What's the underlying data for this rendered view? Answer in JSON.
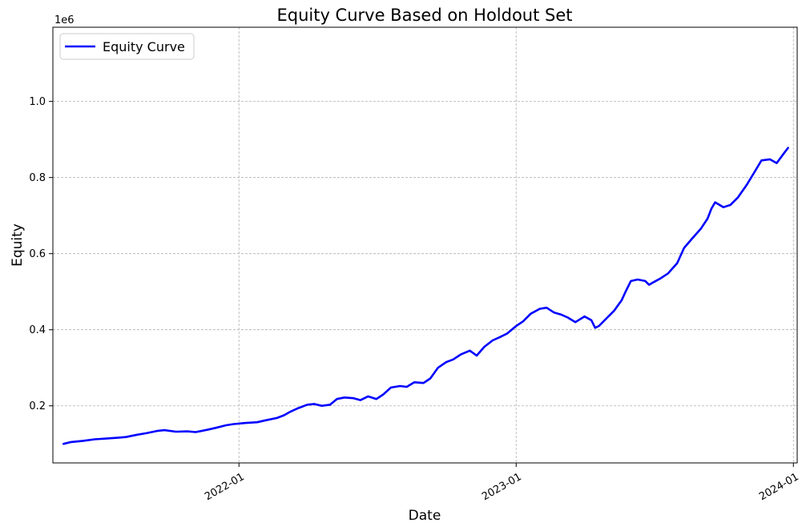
{
  "chart_data": {
    "type": "line",
    "title": "Equity Curve Based on Holdout Set",
    "xlabel": "Date",
    "ylabel": "Equity",
    "y_offset_label": "1e6",
    "xlim": [
      "2021-05-01",
      "2024-01-06"
    ],
    "ylim": [
      50000,
      1195000
    ],
    "x_ticks": [
      {
        "date": "2022-01-01",
        "label": "2022-01"
      },
      {
        "date": "2023-01-01",
        "label": "2023-01"
      },
      {
        "date": "2024-01-01",
        "label": "2024-01"
      }
    ],
    "y_ticks": [
      {
        "value": 200000,
        "label": "0.2"
      },
      {
        "value": 400000,
        "label": "0.4"
      },
      {
        "value": 600000,
        "label": "0.6"
      },
      {
        "value": 800000,
        "label": "0.8"
      },
      {
        "value": 1000000,
        "label": "1.0"
      }
    ],
    "grid": true,
    "legend": {
      "position": "top-left",
      "entries": [
        "Equity Curve"
      ]
    },
    "series": [
      {
        "name": "Equity Curve",
        "color": "#0000ff",
        "points": [
          [
            "2021-05-15",
            100000
          ],
          [
            "2021-05-25",
            105000
          ],
          [
            "2021-06-10",
            108000
          ],
          [
            "2021-06-25",
            112000
          ],
          [
            "2021-07-10",
            114000
          ],
          [
            "2021-07-25",
            116000
          ],
          [
            "2021-08-05",
            118000
          ],
          [
            "2021-08-20",
            124000
          ],
          [
            "2021-09-01",
            128000
          ],
          [
            "2021-09-15",
            134000
          ],
          [
            "2021-09-25",
            136000
          ],
          [
            "2021-10-10",
            132000
          ],
          [
            "2021-10-25",
            133000
          ],
          [
            "2021-11-05",
            131000
          ],
          [
            "2021-11-20",
            137000
          ],
          [
            "2021-12-01",
            142000
          ],
          [
            "2021-12-15",
            149000
          ],
          [
            "2021-12-25",
            152000
          ],
          [
            "2022-01-10",
            155000
          ],
          [
            "2022-01-25",
            157000
          ],
          [
            "2022-02-05",
            162000
          ],
          [
            "2022-02-20",
            168000
          ],
          [
            "2022-03-01",
            175000
          ],
          [
            "2022-03-10",
            185000
          ],
          [
            "2022-03-20",
            194000
          ],
          [
            "2022-04-01",
            203000
          ],
          [
            "2022-04-10",
            205000
          ],
          [
            "2022-04-20",
            200000
          ],
          [
            "2022-05-01",
            203000
          ],
          [
            "2022-05-10",
            218000
          ],
          [
            "2022-05-20",
            222000
          ],
          [
            "2022-06-01",
            220000
          ],
          [
            "2022-06-10",
            215000
          ],
          [
            "2022-06-20",
            225000
          ],
          [
            "2022-07-01",
            218000
          ],
          [
            "2022-07-10",
            230000
          ],
          [
            "2022-07-20",
            248000
          ],
          [
            "2022-08-01",
            252000
          ],
          [
            "2022-08-10",
            250000
          ],
          [
            "2022-08-20",
            262000
          ],
          [
            "2022-09-01",
            260000
          ],
          [
            "2022-09-10",
            272000
          ],
          [
            "2022-09-20",
            300000
          ],
          [
            "2022-10-01",
            315000
          ],
          [
            "2022-10-10",
            322000
          ],
          [
            "2022-10-20",
            335000
          ],
          [
            "2022-11-01",
            345000
          ],
          [
            "2022-11-10",
            332000
          ],
          [
            "2022-11-20",
            355000
          ],
          [
            "2022-12-01",
            372000
          ],
          [
            "2022-12-10",
            380000
          ],
          [
            "2022-12-20",
            390000
          ],
          [
            "2023-01-01",
            410000
          ],
          [
            "2023-01-10",
            422000
          ],
          [
            "2023-01-20",
            442000
          ],
          [
            "2023-02-01",
            455000
          ],
          [
            "2023-02-10",
            458000
          ],
          [
            "2023-02-20",
            445000
          ],
          [
            "2023-03-01",
            440000
          ],
          [
            "2023-03-10",
            432000
          ],
          [
            "2023-03-20",
            420000
          ],
          [
            "2023-04-01",
            435000
          ],
          [
            "2023-04-10",
            425000
          ],
          [
            "2023-04-15",
            405000
          ],
          [
            "2023-04-20",
            410000
          ],
          [
            "2023-05-01",
            432000
          ],
          [
            "2023-05-10",
            450000
          ],
          [
            "2023-05-20",
            478000
          ],
          [
            "2023-05-25",
            500000
          ],
          [
            "2023-06-01",
            528000
          ],
          [
            "2023-06-10",
            532000
          ],
          [
            "2023-06-20",
            528000
          ],
          [
            "2023-06-25",
            518000
          ],
          [
            "2023-07-01",
            525000
          ],
          [
            "2023-07-10",
            535000
          ],
          [
            "2023-07-20",
            548000
          ],
          [
            "2023-08-01",
            575000
          ],
          [
            "2023-08-10",
            615000
          ],
          [
            "2023-08-20",
            638000
          ],
          [
            "2023-09-01",
            665000
          ],
          [
            "2023-09-10",
            692000
          ],
          [
            "2023-09-15",
            718000
          ],
          [
            "2023-09-20",
            735000
          ],
          [
            "2023-10-01",
            722000
          ],
          [
            "2023-10-10",
            728000
          ],
          [
            "2023-10-20",
            748000
          ],
          [
            "2023-11-01",
            782000
          ],
          [
            "2023-11-10",
            812000
          ],
          [
            "2023-11-20",
            845000
          ],
          [
            "2023-12-01",
            848000
          ],
          [
            "2023-12-10",
            838000
          ],
          [
            "2023-12-20",
            865000
          ],
          [
            "2023-12-25",
            878000
          ]
        ]
      }
    ]
  }
}
